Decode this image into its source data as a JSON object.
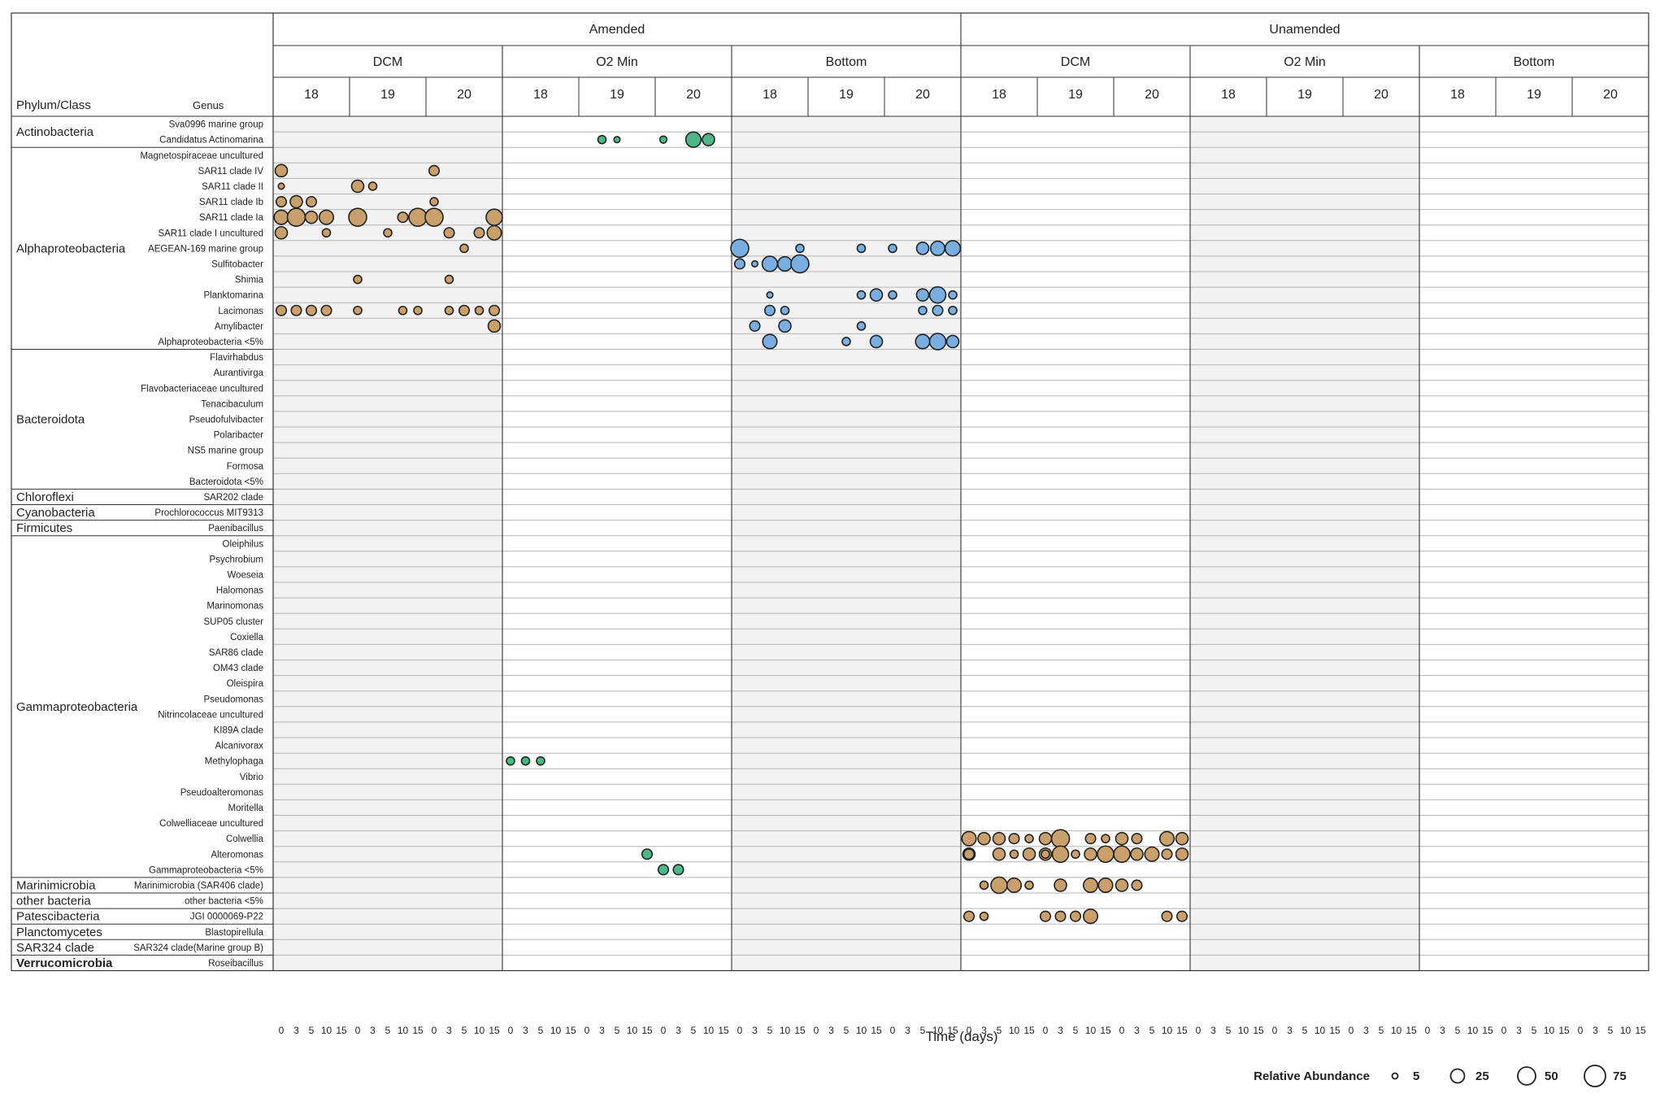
{
  "chart_data": {
    "type": "scatter",
    "title": "",
    "xlabel": "Time (days)",
    "header": {
      "phylum_col_label": "Phylum/Class",
      "genus_col_label": "Genus",
      "treatments": [
        "Amended",
        "Unamended"
      ],
      "depths": [
        "DCM",
        "O2 Min",
        "Bottom"
      ],
      "stations": [
        "18",
        "19",
        "20"
      ],
      "timepoints": [
        "0",
        "3",
        "5",
        "10",
        "15"
      ]
    },
    "colors": {
      "DCM": "#c9a06b",
      "O2 Min": "#4cb88a",
      "Bottom": "#7aaee0",
      "shade": "#f2f2f2",
      "outline": "#222222"
    },
    "legend": {
      "title": "Relative Abundance",
      "placement": "bottom-right",
      "sizes": [
        5,
        25,
        50,
        75
      ],
      "labels": [
        "5",
        "25",
        "50",
        "75"
      ]
    },
    "groups": [
      {
        "name": "Actinobacteria",
        "genera": [
          "Sva0996 marine group",
          "Candidatus Actinomarina"
        ]
      },
      {
        "name": "Alphaproteobacteria",
        "genera": [
          "Magnetospiraceae uncultured",
          "SAR11 clade IV",
          "SAR11 clade II",
          "SAR11 clade Ib",
          "SAR11 clade Ia",
          "SAR11 clade I uncultured",
          "AEGEAN-169 marine group",
          "Sulfitobacter",
          "Shimia",
          "Planktomarina",
          "Lacimonas",
          "Amylibacter",
          "Alphaproteobacteria <5%"
        ]
      },
      {
        "name": "Bacteroidota",
        "genera": [
          "Flavirhabdus",
          "Aurantivirga",
          "Flavobacteriaceae uncultured",
          "Tenacibaculum",
          "Pseudofulvibacter",
          "Polaribacter",
          "NS5 marine group",
          "Formosa",
          "Bacteroidota <5%"
        ]
      },
      {
        "name": "Chloroflexi",
        "genera": [
          "SAR202 clade"
        ]
      },
      {
        "name": "Cyanobacteria",
        "genera": [
          "Prochlorococcus MIT9313"
        ]
      },
      {
        "name": "Firmicutes",
        "genera": [
          "Paenibacillus"
        ]
      },
      {
        "name": "Gammaproteobacteria",
        "genera": [
          "Oleiphilus",
          "Psychrobium",
          "Woeseia",
          "Halomonas",
          "Marinomonas",
          "SUP05 cluster",
          "Coxiella",
          "SAR86 clade",
          "OM43 clade",
          "Oleispira",
          "Pseudomonas",
          "Nitrincolaceae uncultured",
          "KI89A clade",
          "Alcanivorax",
          "Methylophaga",
          "Vibrio",
          "Pseudoalteromonas",
          "Moritella",
          "Colwelliaceae uncultured",
          "Colwellia",
          "Alteromonas",
          "Gammaproteobacteria <5%"
        ]
      },
      {
        "name": "Marinimicrobia",
        "genera": [
          "Marinimicrobia (SAR406 clade)"
        ]
      },
      {
        "name": "other bacteria",
        "genera": [
          "other bacteria <5%"
        ]
      },
      {
        "name": "Patescibacteria",
        "genera": [
          "JGI 0000069-P22"
        ]
      },
      {
        "name": "Planctomycetes",
        "genera": [
          "Blastopirellula"
        ]
      },
      {
        "name": "SAR324 clade",
        "genera": [
          "SAR324 clade(Marine group B)"
        ]
      },
      {
        "name": "Verrucomicrobia",
        "genera": [
          "Roseibacillus"
        ]
      }
    ],
    "points": [
      [
        1,
        0,
        9,
        10
      ],
      [
        1,
        0,
        10,
        10
      ],
      [
        1,
        0,
        11,
        10
      ],
      [
        1,
        0,
        0,
        8
      ],
      [
        1,
        0,
        1,
        8
      ],
      [
        1,
        0,
        2,
        8
      ],
      [
        1,
        0,
        7,
        6
      ],
      [
        1,
        0,
        10,
        7
      ],
      [
        1,
        0,
        12,
        15
      ],
      [
        1,
        0,
        13,
        12
      ],
      [
        1,
        0,
        6,
        8
      ],
      [
        2,
        0,
        0,
        10
      ],
      [
        2,
        0,
        0,
        8
      ],
      [
        2,
        0,
        4,
        8
      ],
      [
        2,
        0,
        8,
        8
      ],
      [
        2,
        0,
        10,
        8
      ],
      [
        2,
        0,
        12,
        12
      ],
      [
        2,
        0,
        13,
        14
      ],
      [
        2,
        0,
        14,
        15
      ],
      [
        2,
        0,
        0,
        18
      ],
      [
        2,
        0,
        0,
        10
      ],
      [
        2,
        0,
        1,
        6
      ],
      [
        2,
        0,
        2,
        15
      ],
      [
        2,
        0,
        3,
        14
      ],
      [
        2,
        0,
        4,
        18
      ],
      [
        2,
        0,
        2,
        6
      ],
      [
        2,
        0,
        8,
        8
      ],
      [
        2,
        0,
        9,
        12
      ],
      [
        2,
        0,
        10,
        8
      ],
      [
        2,
        0,
        12,
        12
      ],
      [
        2,
        0,
        13,
        16
      ],
      [
        2,
        0,
        14,
        8
      ],
      [
        2,
        0,
        2,
        10
      ],
      [
        2,
        0,
        3,
        8
      ],
      [
        2,
        0,
        12,
        8
      ],
      [
        2,
        0,
        13,
        10
      ],
      [
        2,
        0,
        14,
        8
      ],
      [
        2,
        0,
        1,
        10
      ],
      [
        2,
        0,
        3,
        12
      ],
      [
        2,
        0,
        8,
        8
      ],
      [
        2,
        0,
        2,
        14
      ],
      [
        2,
        0,
        7,
        8
      ],
      [
        2,
        0,
        9,
        12
      ],
      [
        2,
        0,
        12,
        14
      ],
      [
        2,
        0,
        13,
        16
      ],
      [
        2,
        0,
        14,
        12
      ],
      [
        0,
        0,
        0,
        12
      ],
      [
        0,
        0,
        10,
        10
      ],
      [
        0,
        0,
        0,
        6
      ],
      [
        0,
        0,
        5,
        12
      ],
      [
        0,
        0,
        6,
        8
      ],
      [
        0,
        0,
        0,
        10
      ],
      [
        0,
        0,
        1,
        12
      ],
      [
        0,
        0,
        2,
        10
      ],
      [
        0,
        0,
        10,
        8
      ],
      [
        0,
        0,
        0,
        14
      ],
      [
        0,
        0,
        1,
        18
      ],
      [
        0,
        0,
        2,
        12
      ],
      [
        0,
        0,
        3,
        14
      ],
      [
        0,
        0,
        5,
        20
      ],
      [
        0,
        0,
        8,
        10
      ],
      [
        0,
        0,
        9,
        18
      ],
      [
        0,
        0,
        10,
        18
      ],
      [
        0,
        0,
        14,
        16
      ],
      [
        0,
        0,
        0,
        12
      ],
      [
        0,
        0,
        3,
        8
      ],
      [
        0,
        0,
        7,
        8
      ],
      [
        0,
        0,
        11,
        10
      ],
      [
        0,
        0,
        13,
        10
      ],
      [
        0,
        0,
        14,
        14
      ],
      [
        0,
        0,
        12,
        8
      ],
      [
        0,
        0,
        5,
        8
      ],
      [
        0,
        0,
        11,
        8
      ],
      [
        0,
        0,
        0,
        10
      ],
      [
        0,
        0,
        1,
        10
      ],
      [
        0,
        0,
        2,
        10
      ],
      [
        0,
        0,
        3,
        10
      ],
      [
        0,
        0,
        5,
        8
      ],
      [
        0,
        0,
        8,
        8
      ],
      [
        0,
        0,
        9,
        8
      ],
      [
        0,
        0,
        11,
        8
      ],
      [
        0,
        0,
        12,
        10
      ],
      [
        0,
        0,
        13,
        8
      ],
      [
        0,
        0,
        14,
        10
      ],
      [
        0,
        0,
        14,
        12
      ],
      [
        0,
        1,
        0,
        14
      ],
      [
        0,
        1,
        1,
        12
      ],
      [
        0,
        1,
        2,
        12
      ],
      [
        0,
        1,
        3,
        10
      ],
      [
        0,
        1,
        4,
        8
      ],
      [
        0,
        1,
        5,
        12
      ],
      [
        0,
        1,
        6,
        20
      ],
      [
        0,
        1,
        8,
        10
      ],
      [
        0,
        1,
        9,
        8
      ],
      [
        0,
        1,
        10,
        12
      ],
      [
        0,
        1,
        11,
        10
      ],
      [
        0,
        1,
        13,
        14
      ],
      [
        0,
        1,
        14,
        12
      ],
      [
        0,
        1,
        0,
        12
      ],
      [
        0,
        1,
        3,
        8
      ],
      [
        0,
        1,
        4,
        10
      ],
      [
        0,
        1,
        5,
        12
      ],
      [
        0,
        1,
        6,
        14
      ],
      [
        0,
        1,
        8,
        10
      ],
      [
        0,
        1,
        9,
        14
      ],
      [
        0,
        1,
        10,
        12
      ],
      [
        0,
        1,
        11,
        10
      ],
      [
        0,
        1,
        12,
        14
      ],
      [
        0,
        1,
        14,
        12
      ],
      [
        0,
        1,
        1,
        8
      ],
      [
        0,
        1,
        2,
        16
      ],
      [
        0,
        1,
        3,
        14
      ],
      [
        0,
        1,
        4,
        8
      ],
      [
        0,
        1,
        6,
        12
      ],
      [
        0,
        1,
        8,
        14
      ],
      [
        0,
        1,
        9,
        14
      ],
      [
        0,
        1,
        10,
        12
      ],
      [
        0,
        1,
        11,
        10
      ],
      [
        0,
        1,
        0,
        10
      ],
      [
        0,
        1,
        2,
        12
      ],
      [
        0,
        1,
        4,
        12
      ],
      [
        0,
        1,
        5,
        8
      ],
      [
        0,
        1,
        6,
        16
      ],
      [
        0,
        1,
        7,
        8
      ],
      [
        0,
        1,
        8,
        12
      ],
      [
        0,
        1,
        9,
        16
      ],
      [
        0,
        1,
        10,
        16
      ],
      [
        0,
        1,
        11,
        12
      ],
      [
        0,
        1,
        13,
        10
      ],
      [
        0,
        1,
        0,
        10
      ],
      [
        0,
        1,
        1,
        8
      ],
      [
        0,
        1,
        5,
        10
      ],
      [
        0,
        1,
        6,
        10
      ],
      [
        0,
        1,
        7,
        10
      ],
      [
        0,
        1,
        8,
        14
      ],
      [
        0,
        1,
        13,
        10
      ],
      [
        0,
        1,
        14,
        10
      ]
    ]
  },
  "footer": {
    "legend_title": "Relative Abundance"
  }
}
